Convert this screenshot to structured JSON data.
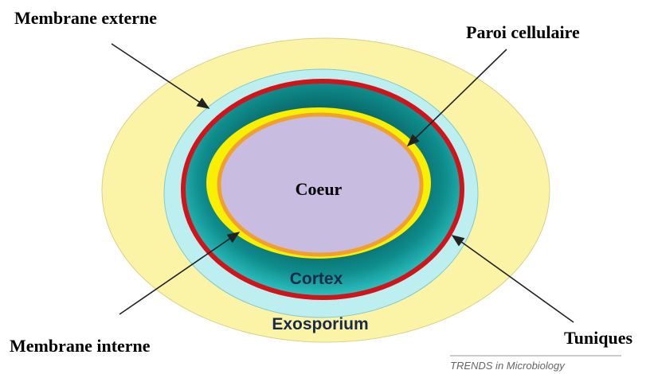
{
  "labels": {
    "outer_membrane": "Membrane externe",
    "cell_wall": "Paroi cellulaire",
    "core": "Coeur",
    "cortex": "Cortex",
    "exosporium": "Exosporium",
    "inner_membrane": "Membrane interne",
    "coats": "Tuniques"
  },
  "source": "TRENDS in Microbiology"
}
